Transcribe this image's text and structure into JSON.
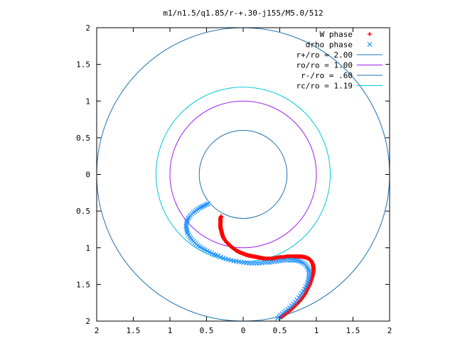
{
  "chart_data": {
    "type": "scatter",
    "title": "m1/n1.5/q1.85/r-+.30-j155/M5.0/512",
    "xlim": [
      -2,
      2
    ],
    "ylim": [
      -2,
      2
    ],
    "x_ticks": [
      {
        "value": -2,
        "label": "2"
      },
      {
        "value": -1.5,
        "label": "1.5"
      },
      {
        "value": -1,
        "label": "1"
      },
      {
        "value": -0.5,
        "label": "0.5"
      },
      {
        "value": 0,
        "label": "0"
      },
      {
        "value": 0.5,
        "label": "0.5"
      },
      {
        "value": 1,
        "label": "1"
      },
      {
        "value": 1.5,
        "label": "1.5"
      },
      {
        "value": 2,
        "label": "2"
      }
    ],
    "y_ticks": [
      {
        "value": 2,
        "label": "2"
      },
      {
        "value": 1.5,
        "label": "1.5"
      },
      {
        "value": 1,
        "label": "1"
      },
      {
        "value": 0.5,
        "label": "0.5"
      },
      {
        "value": 0,
        "label": "0"
      },
      {
        "value": -0.5,
        "label": "0.5"
      },
      {
        "value": -1,
        "label": "1"
      },
      {
        "value": -1.5,
        "label": "1.5"
      },
      {
        "value": -2,
        "label": "2"
      }
    ],
    "grid": false,
    "legend_position": "top-right",
    "series": [
      {
        "name": "W phase",
        "marker": "+",
        "color": "#ff0000",
        "points": [
          [
            -0.3,
            -0.57
          ],
          [
            -0.31,
            -0.6
          ],
          [
            -0.31,
            -0.64
          ],
          [
            -0.31,
            -0.68
          ],
          [
            -0.31,
            -0.72
          ],
          [
            -0.3,
            -0.76
          ],
          [
            -0.29,
            -0.8
          ],
          [
            -0.28,
            -0.84
          ],
          [
            -0.26,
            -0.88
          ],
          [
            -0.23,
            -0.92
          ],
          [
            -0.2,
            -0.95
          ],
          [
            -0.17,
            -0.98
          ],
          [
            -0.13,
            -1.01
          ],
          [
            -0.09,
            -1.04
          ],
          [
            -0.05,
            -1.06
          ],
          [
            0.0,
            -1.08
          ],
          [
            0.05,
            -1.1
          ],
          [
            0.1,
            -1.11
          ],
          [
            0.15,
            -1.12
          ],
          [
            0.2,
            -1.13
          ],
          [
            0.25,
            -1.14
          ],
          [
            0.3,
            -1.15
          ],
          [
            0.35,
            -1.15
          ],
          [
            0.4,
            -1.15
          ],
          [
            0.45,
            -1.14
          ],
          [
            0.5,
            -1.13
          ],
          [
            0.55,
            -1.13
          ],
          [
            0.6,
            -1.12
          ],
          [
            0.65,
            -1.12
          ],
          [
            0.7,
            -1.12
          ],
          [
            0.75,
            -1.12
          ],
          [
            0.8,
            -1.12
          ],
          [
            0.85,
            -1.13
          ],
          [
            0.9,
            -1.15
          ],
          [
            0.93,
            -1.18
          ],
          [
            0.95,
            -1.22
          ],
          [
            0.96,
            -1.27
          ],
          [
            0.96,
            -1.32
          ],
          [
            0.95,
            -1.38
          ],
          [
            0.93,
            -1.44
          ],
          [
            0.91,
            -1.5
          ],
          [
            0.88,
            -1.56
          ],
          [
            0.85,
            -1.62
          ],
          [
            0.81,
            -1.68
          ],
          [
            0.77,
            -1.73
          ],
          [
            0.72,
            -1.78
          ],
          [
            0.67,
            -1.83
          ],
          [
            0.62,
            -1.87
          ],
          [
            0.57,
            -1.91
          ],
          [
            0.52,
            -1.95
          ]
        ]
      },
      {
        "name": "drho phase",
        "marker": "x",
        "color": "#1e90ff",
        "points": [
          [
            -0.48,
            -0.4
          ],
          [
            -0.52,
            -0.42
          ],
          [
            -0.56,
            -0.44
          ],
          [
            -0.6,
            -0.46
          ],
          [
            -0.64,
            -0.49
          ],
          [
            -0.68,
            -0.52
          ],
          [
            -0.72,
            -0.56
          ],
          [
            -0.75,
            -0.6
          ],
          [
            -0.77,
            -0.65
          ],
          [
            -0.78,
            -0.7
          ],
          [
            -0.77,
            -0.75
          ],
          [
            -0.76,
            -0.8
          ],
          [
            -0.73,
            -0.85
          ],
          [
            -0.7,
            -0.89
          ],
          [
            -0.66,
            -0.93
          ],
          [
            -0.62,
            -0.97
          ],
          [
            -0.57,
            -1.0
          ],
          [
            -0.52,
            -1.03
          ],
          [
            -0.46,
            -1.06
          ],
          [
            -0.4,
            -1.09
          ],
          [
            -0.34,
            -1.11
          ],
          [
            -0.27,
            -1.14
          ],
          [
            -0.2,
            -1.16
          ],
          [
            -0.13,
            -1.18
          ],
          [
            -0.06,
            -1.19
          ],
          [
            0.01,
            -1.2
          ],
          [
            0.08,
            -1.21
          ],
          [
            0.15,
            -1.21
          ],
          [
            0.22,
            -1.21
          ],
          [
            0.29,
            -1.2
          ],
          [
            0.36,
            -1.2
          ],
          [
            0.43,
            -1.19
          ],
          [
            0.5,
            -1.18
          ],
          [
            0.57,
            -1.17
          ],
          [
            0.64,
            -1.17
          ],
          [
            0.7,
            -1.17
          ],
          [
            0.76,
            -1.18
          ],
          [
            0.81,
            -1.2
          ],
          [
            0.85,
            -1.23
          ],
          [
            0.88,
            -1.27
          ],
          [
            0.9,
            -1.32
          ],
          [
            0.9,
            -1.38
          ],
          [
            0.89,
            -1.44
          ],
          [
            0.87,
            -1.5
          ],
          [
            0.84,
            -1.56
          ],
          [
            0.8,
            -1.62
          ],
          [
            0.76,
            -1.68
          ],
          [
            0.71,
            -1.74
          ],
          [
            0.66,
            -1.79
          ],
          [
            0.61,
            -1.84
          ],
          [
            0.56,
            -1.88
          ],
          [
            0.51,
            -1.92
          ],
          [
            0.47,
            -1.96
          ]
        ]
      },
      {
        "name": "r+/ro = 2.00",
        "type": "circle",
        "radius": 2.0,
        "color": "#1e73b0"
      },
      {
        "name": "ro/ro = 1.00",
        "type": "circle",
        "radius": 1.0,
        "color": "#a020f0"
      },
      {
        "name": "r-/ro = .60",
        "type": "circle",
        "radius": 0.6,
        "color": "#1e73b0"
      },
      {
        "name": "rc/ro = 1.19",
        "type": "circle",
        "radius": 1.19,
        "color": "#00c8d8"
      }
    ]
  }
}
